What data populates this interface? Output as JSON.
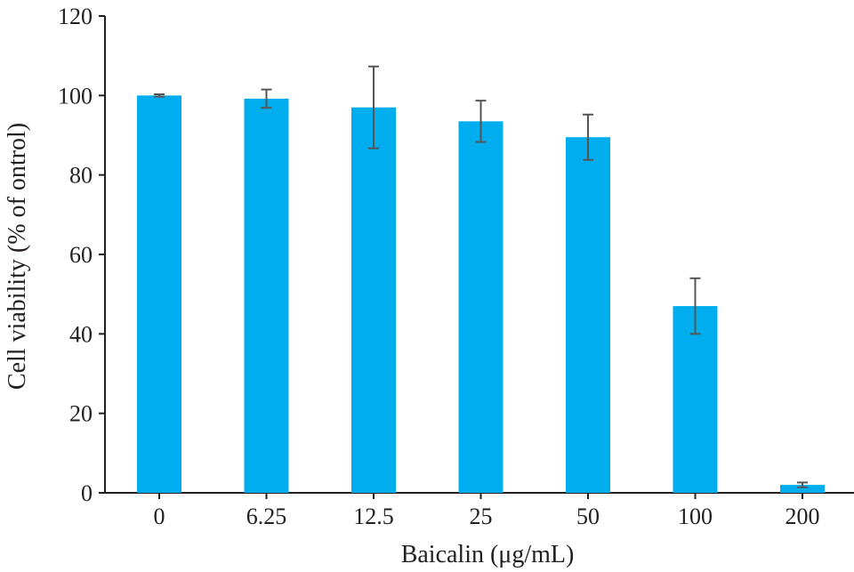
{
  "chart_data": {
    "type": "bar",
    "xlabel": "Baicalin (μg/mL)",
    "ylabel": "Cell viability (% of ontrol)",
    "categories": [
      "0",
      "6.25",
      "12.5",
      "25",
      "50",
      "100",
      "200"
    ],
    "series": [
      {
        "values": [
          100,
          99.2,
          97,
          93.5,
          89.5,
          47,
          2
        ],
        "errors": [
          0.3,
          2.3,
          10.3,
          5.2,
          5.7,
          7,
          0.6
        ]
      }
    ],
    "ylim": [
      0,
      120
    ],
    "yticks": [
      0,
      20,
      40,
      60,
      80,
      100,
      120
    ],
    "grid": false,
    "colors": {
      "bar": "#00aeef",
      "error_bar": "#555555",
      "axis": "#231f20"
    }
  }
}
